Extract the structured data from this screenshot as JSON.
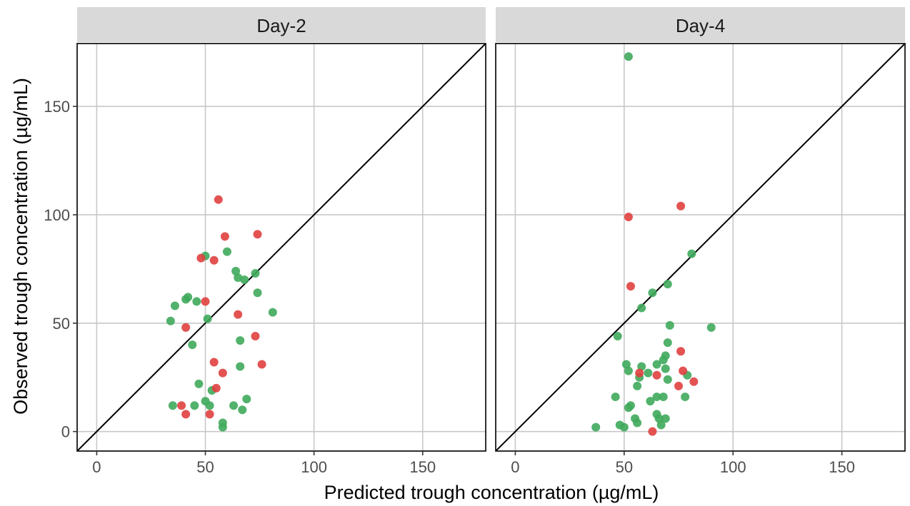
{
  "chart_data": {
    "type": "scatter",
    "xlabel": "Predicted trough concentration (µg/mL)",
    "ylabel": "Observed trough concentration (µg/mL)",
    "xlim": [
      -9,
      179
    ],
    "ylim": [
      -9,
      179
    ],
    "xticks": [
      0,
      50,
      100,
      150
    ],
    "yticks": [
      0,
      50,
      100,
      150
    ],
    "grid": true,
    "reference_line": "identity (y = x)",
    "colors": {
      "green": "#3faa5c",
      "red": "#e0403f",
      "line": "#000000",
      "grid": "#c8c8c8",
      "strip": "#d9d9d9"
    },
    "panels": [
      {
        "label": "Day-2",
        "green": [
          [
            34,
            51
          ],
          [
            35,
            12
          ],
          [
            36,
            58
          ],
          [
            41,
            61
          ],
          [
            42,
            62
          ],
          [
            44,
            40
          ],
          [
            45,
            12
          ],
          [
            46,
            60
          ],
          [
            47,
            22
          ],
          [
            50,
            14
          ],
          [
            50,
            81
          ],
          [
            51,
            52
          ],
          [
            52,
            12
          ],
          [
            53,
            19
          ],
          [
            58,
            4
          ],
          [
            58,
            2
          ],
          [
            60,
            83
          ],
          [
            63,
            12
          ],
          [
            64,
            74
          ],
          [
            65,
            71
          ],
          [
            66,
            42
          ],
          [
            66,
            30
          ],
          [
            67,
            10
          ],
          [
            68,
            70
          ],
          [
            69,
            15
          ],
          [
            73,
            73
          ],
          [
            74,
            64
          ],
          [
            81,
            55
          ]
        ],
        "red": [
          [
            39,
            12
          ],
          [
            41,
            8
          ],
          [
            41,
            48
          ],
          [
            48,
            80
          ],
          [
            50,
            60
          ],
          [
            52,
            8
          ],
          [
            54,
            32
          ],
          [
            54,
            79
          ],
          [
            55,
            20
          ],
          [
            56,
            107
          ],
          [
            58,
            27
          ],
          [
            59,
            90
          ],
          [
            65,
            54
          ],
          [
            73,
            44
          ],
          [
            74,
            91
          ],
          [
            76,
            31
          ]
        ]
      },
      {
        "label": "Day-4",
        "green": [
          [
            37,
            2
          ],
          [
            46,
            16
          ],
          [
            47,
            44
          ],
          [
            48,
            3
          ],
          [
            50,
            2
          ],
          [
            51,
            31
          ],
          [
            52,
            28
          ],
          [
            52,
            11
          ],
          [
            52,
            173
          ],
          [
            53,
            12
          ],
          [
            55,
            6
          ],
          [
            56,
            4
          ],
          [
            56,
            21
          ],
          [
            57,
            25
          ],
          [
            58,
            57
          ],
          [
            58,
            30
          ],
          [
            61,
            27
          ],
          [
            62,
            14
          ],
          [
            63,
            64
          ],
          [
            65,
            8
          ],
          [
            65,
            16
          ],
          [
            65,
            31
          ],
          [
            66,
            6
          ],
          [
            67,
            3
          ],
          [
            68,
            33
          ],
          [
            68,
            16
          ],
          [
            69,
            6
          ],
          [
            69,
            29
          ],
          [
            69,
            35
          ],
          [
            70,
            24
          ],
          [
            70,
            41
          ],
          [
            70,
            68
          ],
          [
            71,
            49
          ],
          [
            78,
            16
          ],
          [
            79,
            26
          ],
          [
            81,
            82
          ],
          [
            90,
            48
          ]
        ],
        "red": [
          [
            52,
            99
          ],
          [
            53,
            67
          ],
          [
            57,
            27
          ],
          [
            63,
            0
          ],
          [
            65,
            26
          ],
          [
            75,
            21
          ],
          [
            76,
            104
          ],
          [
            76,
            37
          ],
          [
            77,
            28
          ],
          [
            82,
            23
          ]
        ]
      }
    ]
  }
}
